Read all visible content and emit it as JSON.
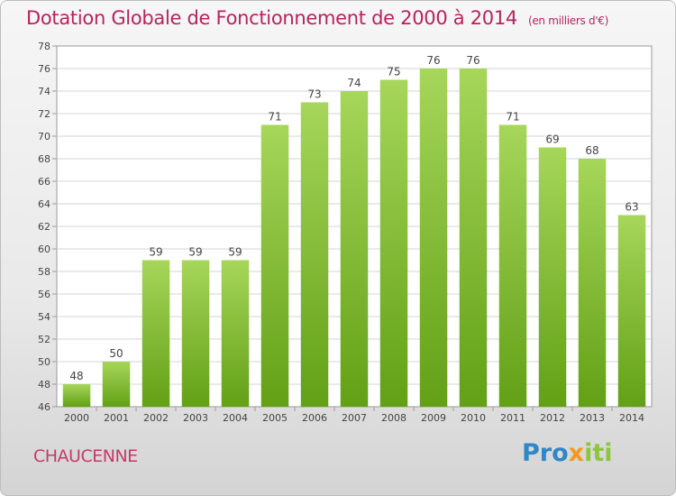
{
  "header": {
    "title": "Dotation Globale de Fonctionnement de 2000 à 2014",
    "unit": "(en milliers d'€)"
  },
  "footer": {
    "commune": "CHAUCENNE",
    "logo": "Proxiti"
  },
  "colors": {
    "bar_top": "#a6d65a",
    "bar_bottom": "#62a016",
    "title": "#b5245e",
    "logo_blue": "#2f86c8",
    "logo_orange": "#f29a1f",
    "logo_green": "#8cc63f"
  },
  "chart_data": {
    "type": "bar",
    "title": "Dotation Globale de Fonctionnement de 2000 à 2014",
    "subtitle": "(en milliers d'€)",
    "xlabel": "",
    "ylabel": "",
    "categories": [
      "2000",
      "2001",
      "2002",
      "2003",
      "2004",
      "2005",
      "2006",
      "2007",
      "2008",
      "2009",
      "2010",
      "2011",
      "2012",
      "2013",
      "2014"
    ],
    "values": [
      48,
      50,
      59,
      59,
      59,
      71,
      73,
      74,
      75,
      76,
      76,
      71,
      69,
      68,
      63
    ],
    "ylim": [
      46,
      78
    ],
    "yticks": [
      46,
      48,
      50,
      52,
      54,
      56,
      58,
      60,
      62,
      64,
      66,
      68,
      70,
      72,
      74,
      76,
      78
    ],
    "grid": true,
    "legend": "none"
  }
}
